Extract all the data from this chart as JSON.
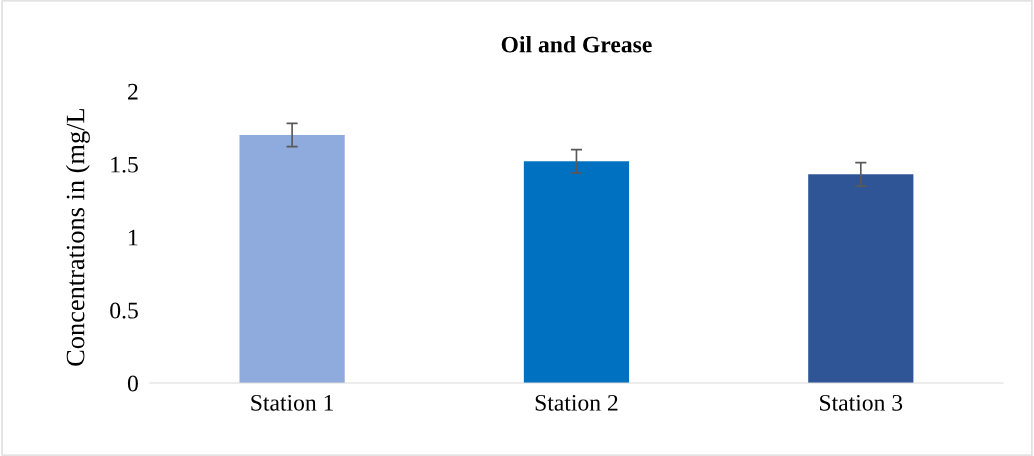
{
  "chart_data": {
    "type": "bar",
    "title": "Oil and Grease",
    "ylabel": "Concentrations in (mg/L",
    "categories": [
      "Station 1",
      "Station 2",
      "Station 3"
    ],
    "values": [
      1.7,
      1.52,
      1.43
    ],
    "colors": [
      "#8faadc",
      "#0070c0",
      "#2f5597"
    ],
    "errors": [
      0.08,
      0.08,
      0.08
    ],
    "ylim": [
      0,
      2
    ],
    "yticks": [
      0,
      0.5,
      1,
      1.5,
      2
    ],
    "grid": false
  }
}
